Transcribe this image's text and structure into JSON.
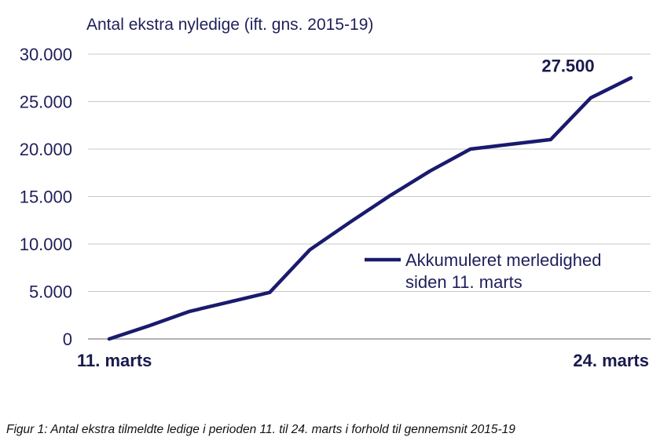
{
  "chart_data": {
    "type": "line",
    "ylabel": "Antal ekstra nyledige (ift. gns. 2015-19)",
    "ylim": [
      0,
      30000
    ],
    "yticks": [
      0,
      5000,
      10000,
      15000,
      20000,
      25000,
      30000
    ],
    "ytick_labels": [
      "0",
      "5.000",
      "10.000",
      "15.000",
      "20.000",
      "25.000",
      "30.000"
    ],
    "xtick_labels": [
      "11. marts",
      "24. marts"
    ],
    "grid": true,
    "legend_position": "right-center",
    "series": [
      {
        "name_lines": [
          "Akkumuleret merledighed",
          "siden 11. marts"
        ],
        "color": "#1a1a6e",
        "x": [
          0,
          1,
          2,
          3,
          4,
          5,
          6,
          7,
          8,
          9,
          10,
          11,
          12,
          13
        ],
        "values": [
          0,
          1400,
          2900,
          3900,
          4900,
          9400,
          12300,
          15100,
          17700,
          20000,
          20500,
          21000,
          25400,
          27500
        ]
      }
    ],
    "annotation": {
      "text": "27.500",
      "value": 27500
    }
  },
  "caption": "Figur 1: Antal ekstra tilmeldte ledige i perioden 11. til 24. marts i forhold til gennemsnit 2015-19"
}
